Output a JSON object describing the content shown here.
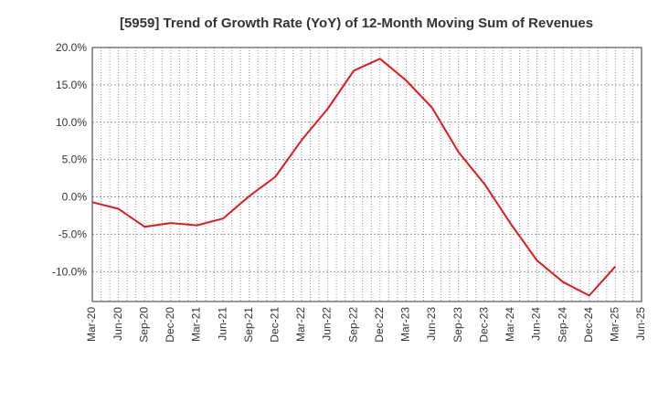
{
  "chart_data": {
    "type": "line",
    "title": "[5959]  Trend of Growth Rate (YoY) of 12-Month Moving Sum of Revenues",
    "xlabel": "",
    "ylabel": "",
    "ylim": [
      -14,
      20
    ],
    "y_ticks": [
      20,
      15,
      10,
      5,
      0,
      -5,
      -10
    ],
    "y_tick_labels": [
      "20.0%",
      "15.0%",
      "10.0%",
      "5.0%",
      "0.0%",
      "-5.0%",
      "-10.0%"
    ],
    "x_tick_labels": [
      "Mar-20",
      "Jun-20",
      "Sep-20",
      "Dec-20",
      "Mar-21",
      "Jun-21",
      "Sep-21",
      "Dec-21",
      "Mar-22",
      "Jun-22",
      "Sep-22",
      "Dec-22",
      "Mar-23",
      "Jun-23",
      "Sep-23",
      "Dec-23",
      "Mar-24",
      "Jun-24",
      "Sep-24",
      "Dec-24",
      "Mar-25",
      "Jun-25"
    ],
    "grid": true,
    "colors": {
      "line": "#e31a1c",
      "grid": "#999999",
      "axis": "#333333"
    },
    "series": [
      {
        "x": [
          "Mar-20",
          "Jun-20",
          "Sep-20",
          "Dec-20",
          "Mar-21",
          "Jun-21",
          "Sep-21",
          "Dec-21",
          "Mar-22",
          "Jun-22",
          "Sep-22",
          "Dec-22",
          "Mar-23",
          "Jun-23",
          "Sep-23",
          "Dec-23",
          "Mar-24",
          "Jun-24",
          "Sep-24",
          "Dec-24",
          "Mar-25"
        ],
        "values": [
          -0.7,
          -1.6,
          -4.0,
          -3.5,
          -3.8,
          -2.9,
          0.1,
          2.7,
          7.6,
          11.8,
          16.9,
          18.5,
          15.6,
          11.9,
          6.0,
          1.7,
          -3.6,
          -8.5,
          -11.4,
          -13.2,
          -9.3
        ]
      }
    ]
  }
}
